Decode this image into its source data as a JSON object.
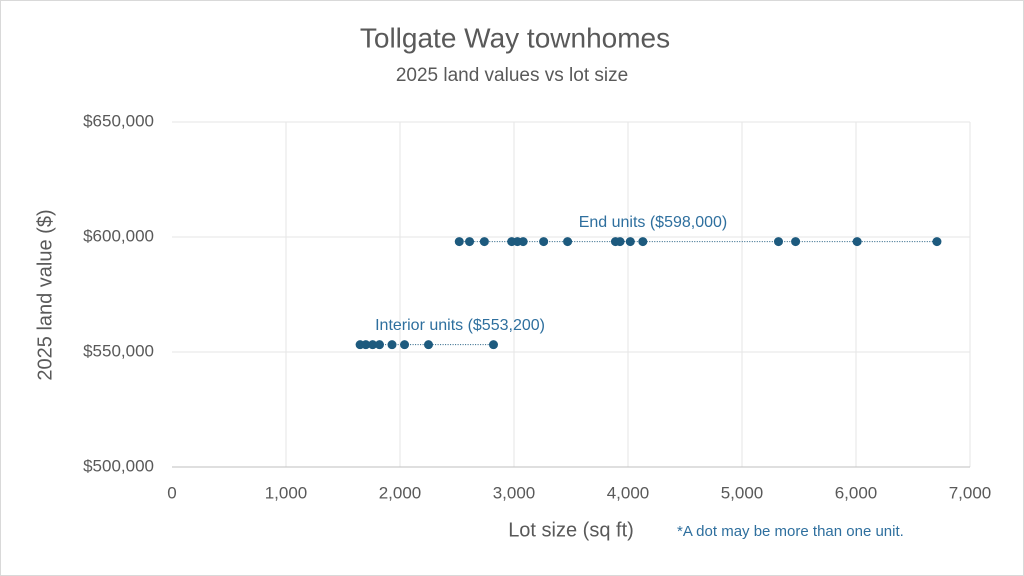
{
  "chart_data": {
    "type": "scatter",
    "title": "Tollgate Way townhomes",
    "subtitle": "2025 land values vs lot size",
    "x_label": "Lot size (sq ft)",
    "y_label": "2025 land value ($)",
    "footnote": "*A dot may be more than one unit.",
    "xlim": [
      0,
      7000
    ],
    "xticks": [
      0,
      {
        "value": 1000,
        "label": "1,000"
      },
      {
        "value": 2000,
        "label": "2,000"
      },
      {
        "value": 3000,
        "label": "3,000"
      },
      {
        "value": 4000,
        "label": "4,000"
      },
      {
        "value": 5000,
        "label": "5,000"
      },
      {
        "value": 6000,
        "label": "6,000"
      },
      {
        "value": 7000,
        "label": "7,000"
      }
    ],
    "ylim": [
      500000,
      650000
    ],
    "yticks": [
      {
        "value": 500000,
        "label": "$500,000"
      },
      {
        "value": 550000,
        "label": "$550,000"
      },
      {
        "value": 600000,
        "label": "$600,000"
      },
      {
        "value": 650000,
        "label": "$650,000"
      }
    ],
    "grid": true,
    "series": [
      {
        "name": "End units ($598,000)",
        "color": "#1d5a7e",
        "x": [
          2520,
          2610,
          2740,
          2980,
          3030,
          3080,
          3260,
          3470,
          3890,
          3930,
          4020,
          4130,
          5320,
          5470,
          6010,
          6710
        ],
        "values": [
          598000,
          598000,
          598000,
          598000,
          598000,
          598000,
          598000,
          598000,
          598000,
          598000,
          598000,
          598000,
          598000,
          598000,
          598000,
          598000
        ]
      },
      {
        "name": "Interior units ($553,200)",
        "color": "#1d5a7e",
        "x": [
          1650,
          1700,
          1760,
          1820,
          1930,
          2040,
          2250,
          2820
        ],
        "values": [
          553200,
          553200,
          553200,
          553200,
          553200,
          553200,
          553200,
          553200
        ]
      }
    ]
  }
}
